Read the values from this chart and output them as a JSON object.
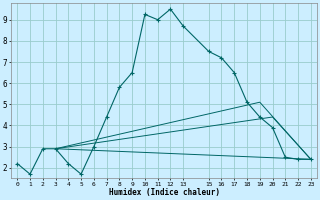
{
  "xlabel": "Humidex (Indice chaleur)",
  "bg_color": "#cceeff",
  "grid_color": "#99cccc",
  "line_color": "#006666",
  "xlim": [
    -0.5,
    23.5
  ],
  "ylim": [
    1.5,
    9.8
  ],
  "xticks": [
    0,
    1,
    2,
    3,
    4,
    5,
    6,
    7,
    8,
    9,
    10,
    11,
    12,
    13,
    15,
    16,
    17,
    18,
    19,
    20,
    21,
    22,
    23
  ],
  "yticks": [
    2,
    3,
    4,
    5,
    6,
    7,
    8,
    9
  ],
  "main_series": {
    "x": [
      0,
      1,
      2,
      3,
      4,
      5,
      6,
      7,
      8,
      9,
      10,
      11,
      12,
      13,
      15,
      16,
      17,
      18,
      19,
      20,
      21,
      22,
      23
    ],
    "y": [
      2.2,
      1.7,
      2.9,
      2.9,
      2.2,
      1.7,
      3.0,
      4.4,
      5.8,
      6.5,
      9.25,
      9.0,
      9.5,
      8.7,
      7.5,
      7.2,
      6.5,
      5.1,
      4.4,
      3.9,
      2.5,
      2.4,
      2.4
    ]
  },
  "flat_lines": [
    {
      "x": [
        3,
        23
      ],
      "y": [
        2.9,
        2.4
      ]
    },
    {
      "x": [
        3,
        19,
        23
      ],
      "y": [
        2.9,
        5.1,
        2.4
      ]
    },
    {
      "x": [
        3,
        20,
        23
      ],
      "y": [
        2.9,
        4.4,
        2.4
      ]
    }
  ]
}
